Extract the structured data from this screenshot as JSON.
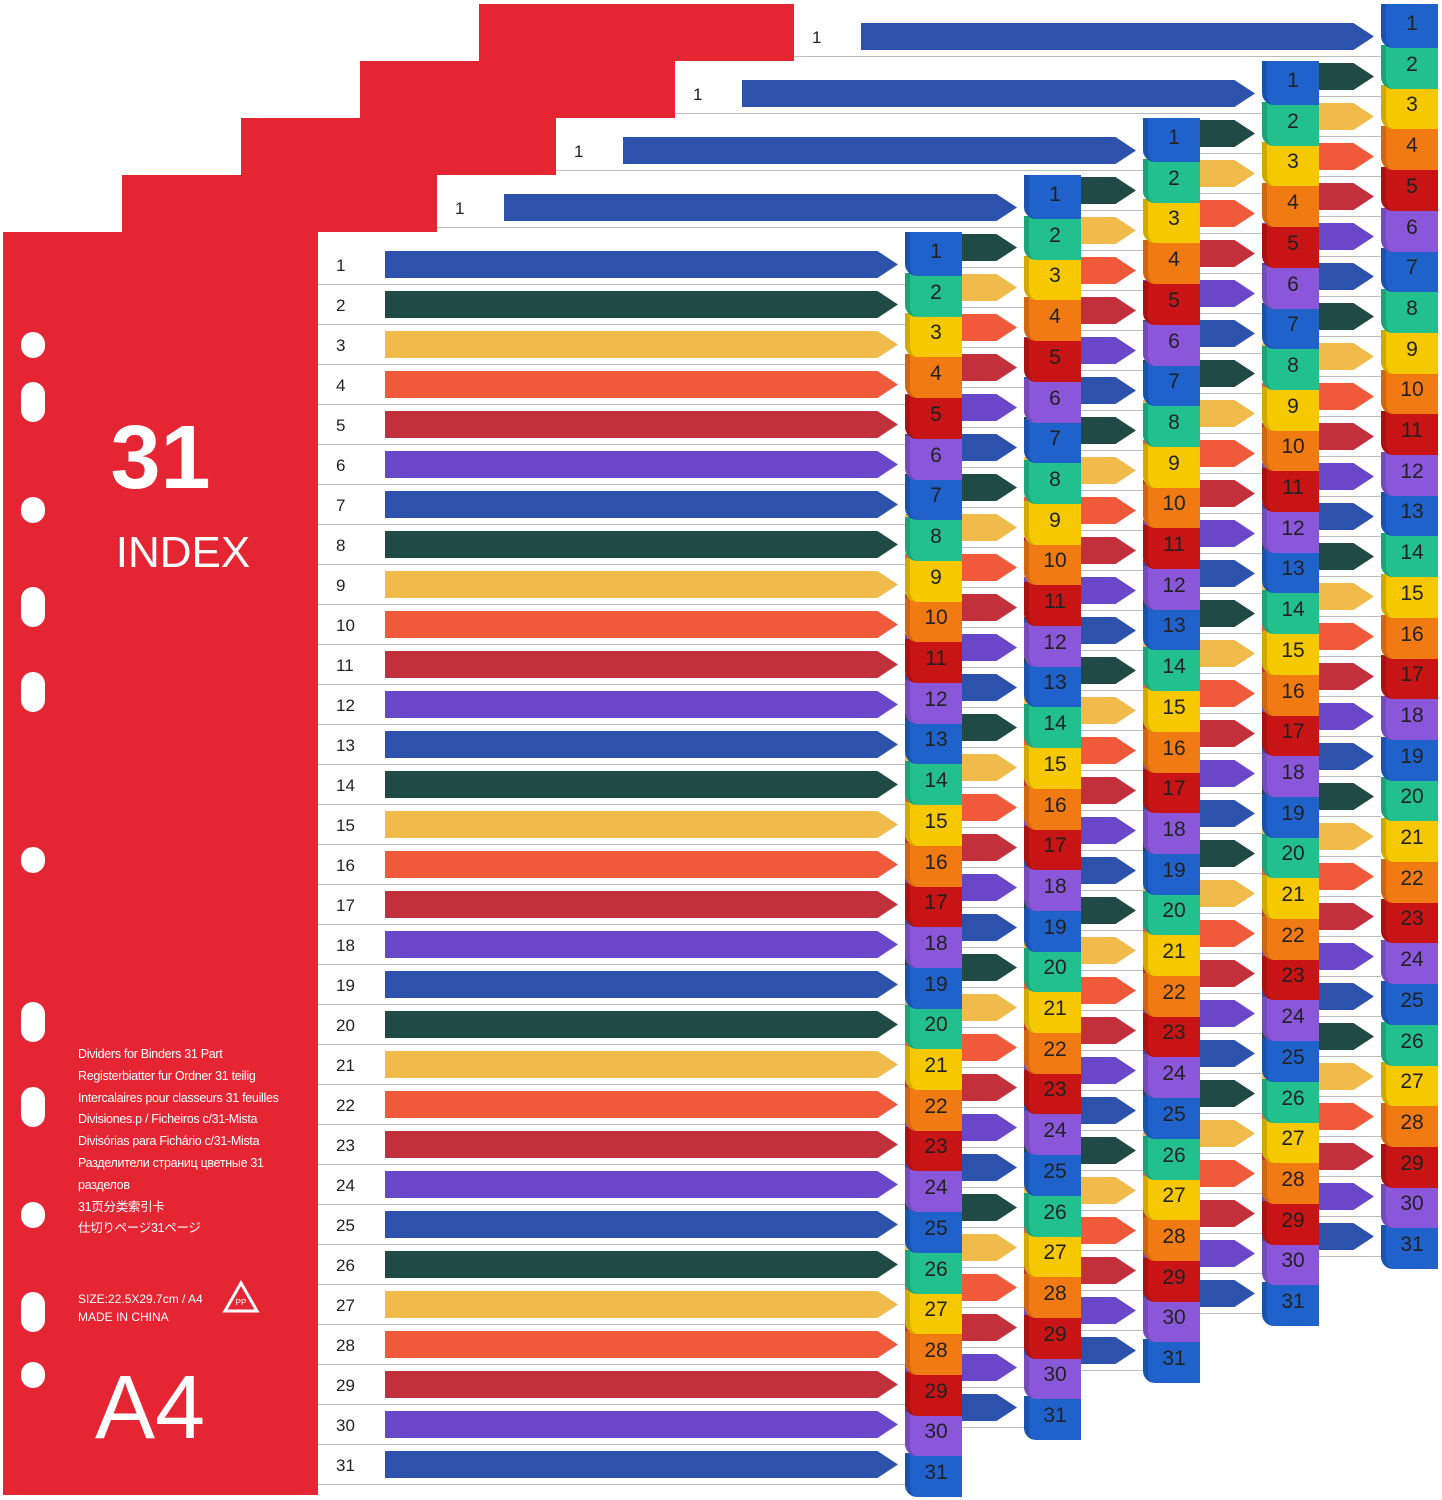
{
  "cover": {
    "count": "31",
    "title": "INDEX",
    "languages": [
      "Dividers for Binders 31 Part",
      "Registerbiatter fur Ordner 31 teilig",
      "Intercalaires pour classeurs 31 feuilles",
      "Divisiones.p / Ficheiros c/31-Mista",
      "Divisórias para Fichário c/31-Mista",
      "Разделители страниц цветные 31 разделов",
      "31页分类索引卡",
      "仕切りページ31ページ"
    ],
    "size": "SIZE:22.5X29.7cm / A4",
    "origin": "MADE IN CHINA",
    "recycle_label": "PP",
    "format": "A4"
  },
  "sheet_count": 5,
  "rows": [
    "1",
    "2",
    "3",
    "4",
    "5",
    "6",
    "7",
    "8",
    "9",
    "10",
    "11",
    "12",
    "13",
    "14",
    "15",
    "16",
    "17",
    "18",
    "19",
    "20",
    "21",
    "22",
    "23",
    "24",
    "25",
    "26",
    "27",
    "28",
    "29",
    "30",
    "31"
  ],
  "colors": {
    "cover": "#e52532",
    "bars": [
      "#2d52ac",
      "#1f4a46",
      "#f1bb4c",
      "#f1593b",
      "#c2303b",
      "#6a46c9"
    ],
    "tabs": [
      "#1f62cc",
      "#22c08c",
      "#f6c800",
      "#f27a12",
      "#c81414",
      "#8a57da"
    ]
  }
}
